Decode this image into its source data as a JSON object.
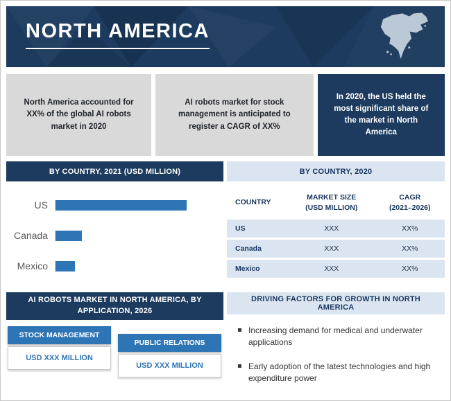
{
  "banner": {
    "title": "NORTH AMERICA"
  },
  "highlights": [
    {
      "text": "North America accounted for XX% of the global AI robots market in 2020"
    },
    {
      "text": "AI robots market for stock management is anticipated to register a CAGR of XX%"
    },
    {
      "text": "In 2020, the US held the most significant share of the market in North America"
    }
  ],
  "left_chart": {
    "header": "BY COUNTRY, 2021 (USD MILLION)"
  },
  "chart_data": {
    "type": "bar",
    "orientation": "horizontal",
    "title": "BY COUNTRY, 2021 (USD MILLION)",
    "categories": [
      "US",
      "Canada",
      "Mexico"
    ],
    "values": [
      100,
      20,
      15
    ],
    "units": "relative bar length (numeric axis values not labeled in figure)",
    "bar_color": "#2e75b6",
    "grid": false,
    "legend": false
  },
  "table": {
    "header": "BY COUNTRY, 2020",
    "columns": [
      "COUNTRY",
      "MARKET SIZE\n(USD MILLION)",
      "CAGR\n(2021–2026)"
    ],
    "rows": [
      [
        "US",
        "XXX",
        "XX%"
      ],
      [
        "Canada",
        "XXX",
        "XX%"
      ],
      [
        "Mexico",
        "XXX",
        "XX%"
      ]
    ]
  },
  "application": {
    "header": "AI ROBOTS MARKET IN NORTH AMERICA, BY APPLICATION, 2026",
    "cards": [
      {
        "label": "STOCK MANAGEMENT",
        "value": "USD XXX MILLION"
      },
      {
        "label": "PUBLIC RELATIONS",
        "value": "USD XXX MILLION"
      }
    ]
  },
  "driving_factors": {
    "header": "DRIVING FACTORS FOR GROWTH IN NORTH AMERICA",
    "bullets": [
      "Increasing demand for medical and underwater applications",
      "Early adoption of the latest technologies and high expenditure power"
    ]
  },
  "colors": {
    "navy": "#1c3b5e",
    "accent_blue": "#2e75b6",
    "light_blue": "#dbe5f1",
    "gray_box": "#d9d9d9"
  }
}
